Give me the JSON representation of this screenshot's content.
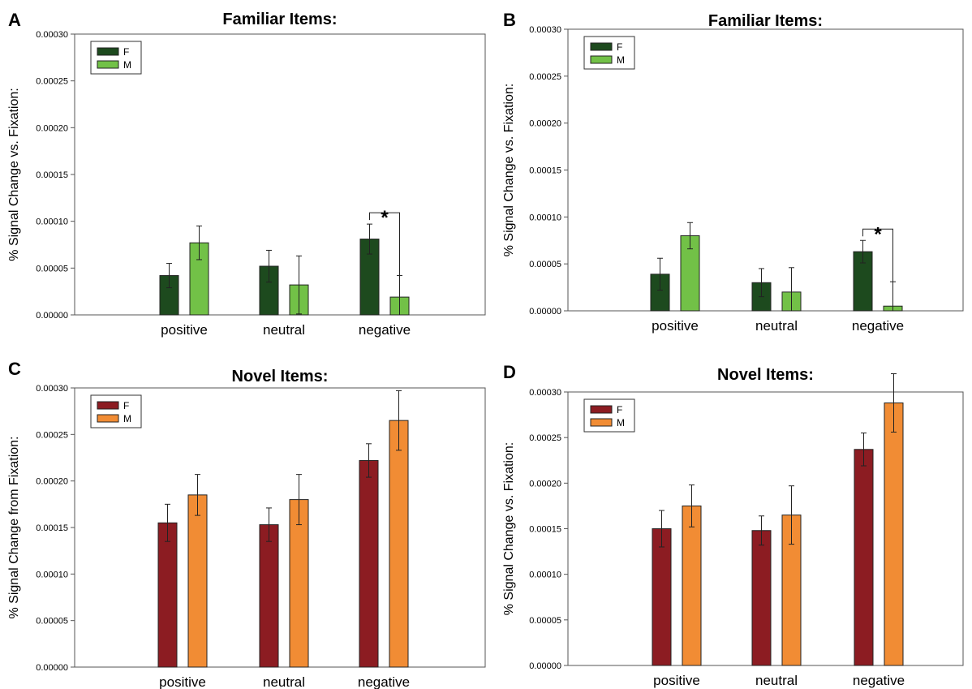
{
  "chart_data": [
    {
      "type": "bar",
      "panel": "A",
      "title": "Familiar Items:",
      "ylabel": "% Signal Change vs. Fixation:",
      "xlabel": "",
      "categories": [
        "positive",
        "neutral",
        "negative"
      ],
      "ylim": [
        0,
        0.0003
      ],
      "yticks": [
        "0.00000",
        "0.00005",
        "0.00010",
        "0.00015",
        "0.00020",
        "0.00025",
        "0.00030"
      ],
      "legend_position": "top-left",
      "grid": false,
      "series": [
        {
          "name": "F",
          "color": "#1d4a1e",
          "values": [
            4.2e-05,
            5.2e-05,
            8.1e-05
          ],
          "errors": [
            1.3e-05,
            1.7e-05,
            1.6e-05
          ]
        },
        {
          "name": "M",
          "color": "#72c147",
          "values": [
            7.7e-05,
            3.2e-05,
            1.9e-05
          ],
          "errors": [
            1.8e-05,
            3.1e-05,
            2.3e-05
          ]
        }
      ],
      "annotation": {
        "text": "*",
        "category": "negative"
      }
    },
    {
      "type": "bar",
      "panel": "B",
      "title": "Familiar Items:",
      "ylabel": "% Signal Change vs. Fixation:",
      "xlabel": "",
      "categories": [
        "positive",
        "neutral",
        "negative"
      ],
      "ylim": [
        0,
        0.0003
      ],
      "yticks": [
        "0.00000",
        "0.00005",
        "0.00010",
        "0.00015",
        "0.00020",
        "0.00025",
        "0.00030"
      ],
      "legend_position": "top-left",
      "grid": false,
      "series": [
        {
          "name": "F",
          "color": "#1d4a1e",
          "values": [
            3.9e-05,
            3e-05,
            6.3e-05
          ],
          "errors": [
            1.7e-05,
            1.5e-05,
            1.2e-05
          ]
        },
        {
          "name": "M",
          "color": "#72c147",
          "values": [
            8e-05,
            2e-05,
            5e-06
          ],
          "errors": [
            1.4e-05,
            2.6e-05,
            2.6e-05
          ]
        }
      ],
      "annotation": {
        "text": "*",
        "category": "negative"
      }
    },
    {
      "type": "bar",
      "panel": "C",
      "title": "Novel Items:",
      "ylabel": "% Signal Change from Fixation:",
      "xlabel": "",
      "categories": [
        "positive",
        "neutral",
        "negative"
      ],
      "ylim": [
        0,
        0.0003
      ],
      "yticks": [
        "0.00000",
        "0.00005",
        "0.00010",
        "0.00015",
        "0.00020",
        "0.00025",
        "0.00030"
      ],
      "legend_position": "top-left",
      "grid": false,
      "series": [
        {
          "name": "F",
          "color": "#8c1c22",
          "values": [
            0.000155,
            0.000153,
            0.000222
          ],
          "errors": [
            2e-05,
            1.8e-05,
            1.8e-05
          ]
        },
        {
          "name": "M",
          "color": "#f18c34",
          "values": [
            0.000185,
            0.00018,
            0.000265
          ],
          "errors": [
            2.2e-05,
            2.7e-05,
            3.2e-05
          ]
        }
      ],
      "annotation": null
    },
    {
      "type": "bar",
      "panel": "D",
      "title": "Novel Items:",
      "ylabel": "% Signal Change vs. Fixation:",
      "xlabel": "",
      "categories": [
        "positive",
        "neutral",
        "negative"
      ],
      "ylim": [
        0,
        0.0003
      ],
      "yticks": [
        "0.00000",
        "0.00005",
        "0.00010",
        "0.00015",
        "0.00020",
        "0.00025",
        "0.00030"
      ],
      "legend_position": "top-left",
      "grid": false,
      "series": [
        {
          "name": "F",
          "color": "#8c1c22",
          "values": [
            0.00015,
            0.000148,
            0.000237
          ],
          "errors": [
            2e-05,
            1.6e-05,
            1.8e-05
          ]
        },
        {
          "name": "M",
          "color": "#f18c34",
          "values": [
            0.000175,
            0.000165,
            0.000288
          ],
          "errors": [
            2.3e-05,
            3.2e-05,
            3.2e-05
          ]
        }
      ],
      "annotation": null
    }
  ]
}
